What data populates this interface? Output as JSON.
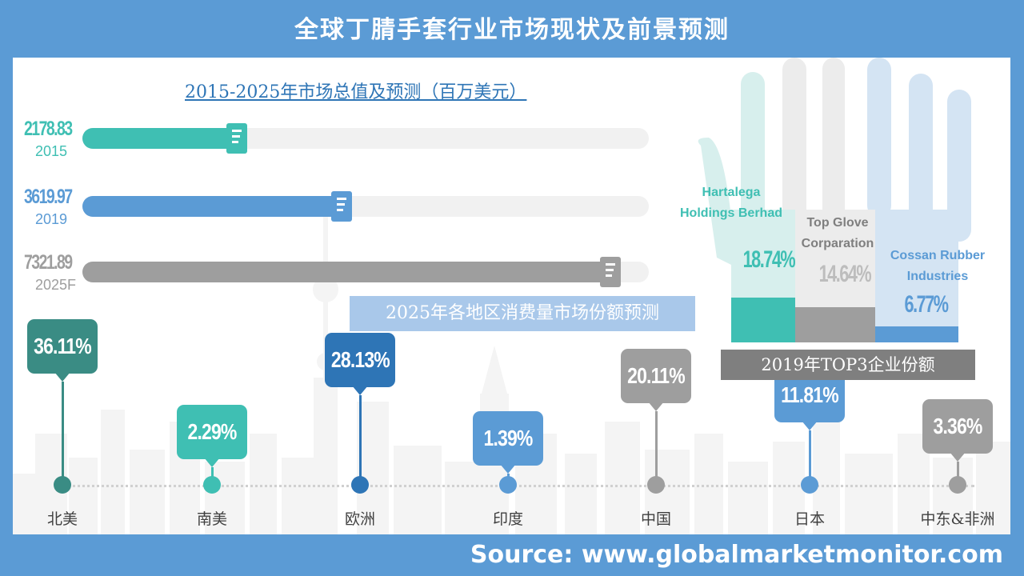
{
  "page": {
    "title": "全球丁腈手套行业市场现状及前景预测",
    "source": "Source: www.globalmarketmonitor.com"
  },
  "colors": {
    "frame": "#5b9bd5",
    "teal": "#3fbfb3",
    "blue": "#5b9bd5",
    "gray": "#9e9e9e",
    "dark_teal": "#3a8c84",
    "mid_blue": "#2e75b6",
    "light_blue": "#7fb0df",
    "track": "#f1f1f1"
  },
  "chart_data": [
    {
      "type": "bar",
      "title": "2015-2025年市场总值及预测（百万美元）",
      "categories": [
        "2015",
        "2019",
        "2025F"
      ],
      "values": [
        2178.83,
        3619.97,
        7321.89
      ],
      "value_labels": [
        "2178.83",
        "3619.97",
        "7321.89"
      ],
      "colors": [
        "#3fbfb3",
        "#5b9bd5",
        "#9e9e9e"
      ],
      "orientation": "horizontal",
      "xlim": [
        0,
        7800
      ],
      "grid": false
    },
    {
      "type": "bar",
      "title": "2025年各地区消费量市场份额预测",
      "categories": [
        "北美",
        "南美",
        "欧洲",
        "印度",
        "中国",
        "日本",
        "中东&非洲"
      ],
      "values": [
        36.11,
        2.29,
        28.13,
        1.39,
        20.11,
        11.81,
        3.36
      ],
      "value_labels": [
        "36.11%",
        "2.29%",
        "28.13%",
        "1.39%",
        "20.11%",
        "11.81%",
        "3.36%"
      ],
      "colors": [
        "#3a8c84",
        "#3fbfb3",
        "#2e75b6",
        "#5b9bd5",
        "#9e9e9e",
        "#5b9bd5",
        "#9e9e9e"
      ],
      "ylim": [
        0,
        40
      ],
      "grid": false
    },
    {
      "type": "bar",
      "title": "2019年TOP3企业份额",
      "categories": [
        "Hartalega Holdings Berhad",
        "Top Glove Corparation",
        "Cossan Rubber Industries"
      ],
      "name_lines": [
        [
          "Hartalega",
          "Holdings  Berhad"
        ],
        [
          "Top Glove",
          "Corparation"
        ],
        [
          "Cossan  Rubber",
          "Industries"
        ]
      ],
      "values": [
        18.74,
        14.64,
        6.77
      ],
      "value_labels": [
        "18.74%",
        "14.64%",
        "6.77%"
      ],
      "colors": [
        "#3fbfb3",
        "#9e9e9e",
        "#5b9bd5"
      ],
      "ylim": [
        0,
        100
      ],
      "grid": false
    }
  ]
}
